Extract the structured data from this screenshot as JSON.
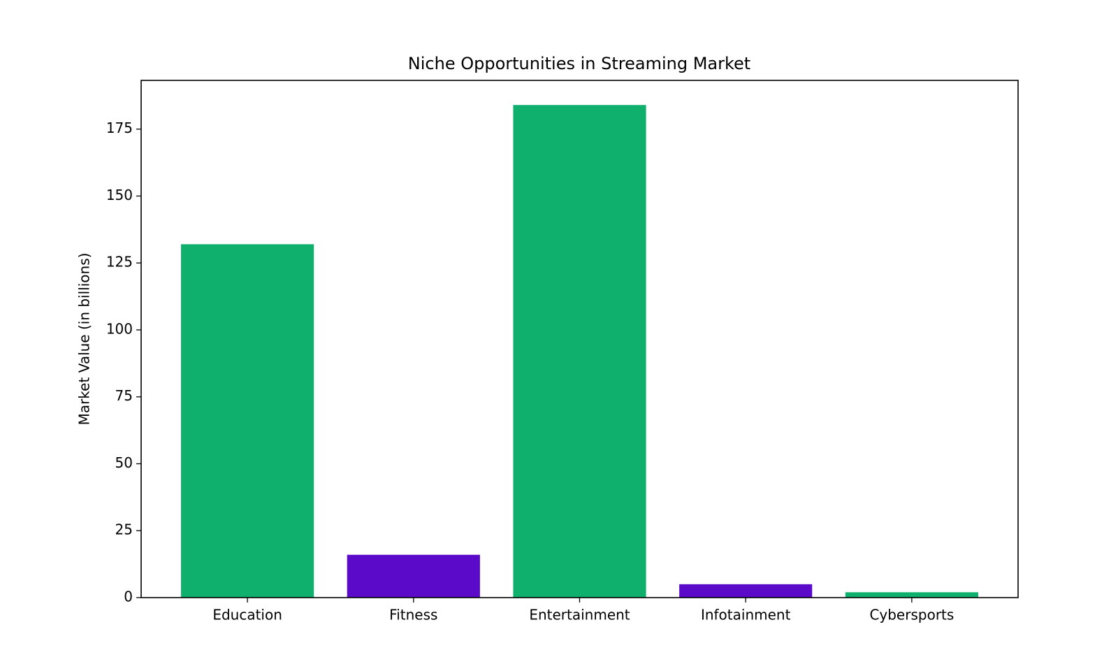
{
  "chart_data": {
    "type": "bar",
    "title": "Niche Opportunities in Streaming Market",
    "y_label": "Market Value (in billions)",
    "categories": [
      "Education",
      "Fitness",
      "Entertainment",
      "Infotainment",
      "Cybersports"
    ],
    "values": [
      132,
      16,
      184,
      5,
      2
    ],
    "colors": [
      "#0fb06d",
      "#5c0ac9",
      "#0fb06d",
      "#5c0ac9",
      "#0fb06d"
    ],
    "ylim": [
      0,
      193.2
    ],
    "yticks": [
      0,
      25,
      50,
      75,
      100,
      125,
      150,
      175
    ],
    "grid": false
  }
}
